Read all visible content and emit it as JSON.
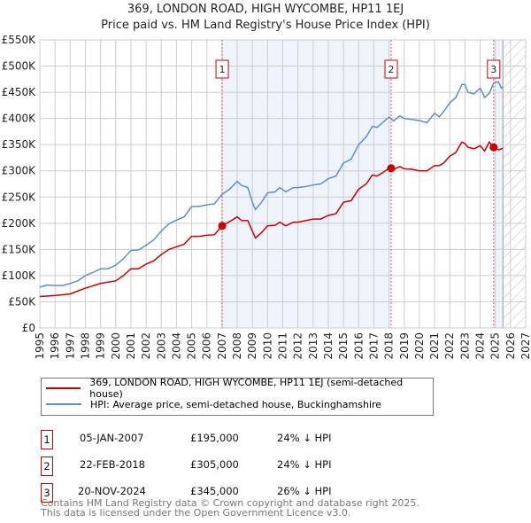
{
  "chart_data": {
    "type": "line",
    "title": "369, LONDON ROAD, HIGH WYCOMBE, HP11 1EJ",
    "subtitle": "Price paid vs. HM Land Registry's House Price Index (HPI)",
    "xlim": [
      1995,
      2027
    ],
    "ylim": [
      0,
      550000
    ],
    "x_ticks": [
      "1995",
      "1996",
      "1997",
      "1998",
      "1999",
      "2000",
      "2001",
      "2002",
      "2003",
      "2004",
      "2005",
      "2006",
      "2007",
      "2008",
      "2009",
      "2010",
      "2011",
      "2012",
      "2013",
      "2014",
      "2015",
      "2016",
      "2017",
      "2018",
      "2019",
      "2020",
      "2021",
      "2022",
      "2023",
      "2024",
      "2025",
      "2026",
      "2027"
    ],
    "y_ticks": [
      "£0",
      "£50K",
      "£100K",
      "£150K",
      "£200K",
      "£250K",
      "£300K",
      "£350K",
      "£400K",
      "£450K",
      "£500K",
      "£550K"
    ],
    "grid": true,
    "series": [
      {
        "name": "369, LONDON ROAD, HIGH WYCOMBE, HP11 1EJ (semi-detached house)",
        "color": "#cc0000",
        "points": [
          [
            1995,
            60
          ],
          [
            1996,
            62
          ],
          [
            1997,
            65
          ],
          [
            1998,
            76
          ],
          [
            1999,
            85
          ],
          [
            2000,
            90
          ],
          [
            2000.5,
            100
          ],
          [
            2001,
            113
          ],
          [
            2001.5,
            113
          ],
          [
            2002,
            122
          ],
          [
            2002.5,
            128
          ],
          [
            2003,
            140
          ],
          [
            2003.5,
            150
          ],
          [
            2004,
            155
          ],
          [
            2004.5,
            160
          ],
          [
            2005,
            175
          ],
          [
            2005.5,
            175
          ],
          [
            2006,
            177
          ],
          [
            2006.5,
            178
          ],
          [
            2007,
            195
          ],
          [
            2007.5,
            203
          ],
          [
            2008,
            212
          ],
          [
            2008.3,
            205
          ],
          [
            2008.7,
            205
          ],
          [
            2009,
            185
          ],
          [
            2009.2,
            172
          ],
          [
            2009.6,
            182
          ],
          [
            2010,
            195
          ],
          [
            2010.5,
            196
          ],
          [
            2010.8,
            202
          ],
          [
            2011.2,
            195
          ],
          [
            2011.7,
            202
          ],
          [
            2012,
            202
          ],
          [
            2012.5,
            205
          ],
          [
            2013,
            208
          ],
          [
            2013.5,
            208
          ],
          [
            2014,
            215
          ],
          [
            2014.5,
            218
          ],
          [
            2015,
            240
          ],
          [
            2015.5,
            243
          ],
          [
            2016,
            265
          ],
          [
            2016.5,
            275
          ],
          [
            2016.9,
            292
          ],
          [
            2017.2,
            290
          ],
          [
            2017.5,
            295
          ],
          [
            2018,
            305
          ],
          [
            2018.3,
            303
          ],
          [
            2018.7,
            308
          ],
          [
            2019,
            304
          ],
          [
            2019.5,
            303
          ],
          [
            2020,
            300
          ],
          [
            2020.5,
            300
          ],
          [
            2021,
            310
          ],
          [
            2021.3,
            310
          ],
          [
            2021.6,
            315
          ],
          [
            2022,
            328
          ],
          [
            2022.4,
            335
          ],
          [
            2022.8,
            355
          ],
          [
            2023,
            352
          ],
          [
            2023.2,
            345
          ],
          [
            2023.6,
            342
          ],
          [
            2024,
            348
          ],
          [
            2024.3,
            338
          ],
          [
            2024.6,
            355
          ],
          [
            2024.9,
            345
          ],
          [
            2025.2,
            340
          ],
          [
            2025.5,
            343
          ]
        ]
      },
      {
        "name": "HPI: Average price, semi-detached house, Buckinghamshire",
        "color": "#5b8fd0",
        "points": [
          [
            1995,
            78
          ],
          [
            1995.5,
            82
          ],
          [
            1996,
            81
          ],
          [
            1996.5,
            81
          ],
          [
            1997,
            85
          ],
          [
            1997.5,
            90
          ],
          [
            1998,
            100
          ],
          [
            1998.5,
            106
          ],
          [
            1999,
            113
          ],
          [
            1999.5,
            113
          ],
          [
            2000,
            120
          ],
          [
            2000.5,
            132
          ],
          [
            2001,
            148
          ],
          [
            2001.5,
            149
          ],
          [
            2002,
            158
          ],
          [
            2002.5,
            168
          ],
          [
            2003,
            185
          ],
          [
            2003.5,
            199
          ],
          [
            2004,
            206
          ],
          [
            2004.5,
            212
          ],
          [
            2005,
            232
          ],
          [
            2005.5,
            232
          ],
          [
            2006,
            235
          ],
          [
            2006.5,
            237
          ],
          [
            2007,
            255
          ],
          [
            2007.5,
            265
          ],
          [
            2008,
            280
          ],
          [
            2008.3,
            272
          ],
          [
            2008.7,
            268
          ],
          [
            2009,
            240
          ],
          [
            2009.2,
            226
          ],
          [
            2009.6,
            240
          ],
          [
            2010,
            258
          ],
          [
            2010.5,
            260
          ],
          [
            2010.8,
            268
          ],
          [
            2011.2,
            260
          ],
          [
            2011.7,
            268
          ],
          [
            2012,
            268
          ],
          [
            2012.5,
            270
          ],
          [
            2013,
            273
          ],
          [
            2013.5,
            275
          ],
          [
            2014,
            285
          ],
          [
            2014.5,
            290
          ],
          [
            2015,
            315
          ],
          [
            2015.5,
            322
          ],
          [
            2016,
            350
          ],
          [
            2016.5,
            365
          ],
          [
            2016.9,
            385
          ],
          [
            2017.2,
            383
          ],
          [
            2017.5,
            390
          ],
          [
            2018,
            403
          ],
          [
            2018.3,
            395
          ],
          [
            2018.7,
            405
          ],
          [
            2019,
            400
          ],
          [
            2019.5,
            398
          ],
          [
            2020,
            396
          ],
          [
            2020.5,
            392
          ],
          [
            2021,
            410
          ],
          [
            2021.3,
            403
          ],
          [
            2021.6,
            413
          ],
          [
            2022,
            430
          ],
          [
            2022.4,
            440
          ],
          [
            2022.8,
            465
          ],
          [
            2023,
            465
          ],
          [
            2023.2,
            450
          ],
          [
            2023.6,
            447
          ],
          [
            2024,
            458
          ],
          [
            2024.3,
            440
          ],
          [
            2024.6,
            448
          ],
          [
            2024.9,
            468
          ],
          [
            2025.2,
            470
          ],
          [
            2025.4,
            458
          ],
          [
            2025.5,
            460
          ]
        ]
      }
    ],
    "sales": [
      {
        "label": "1",
        "x": 2007.01,
        "y": 195
      },
      {
        "label": "2",
        "x": 2018.14,
        "y": 305
      },
      {
        "label": "3",
        "x": 2024.89,
        "y": 345
      }
    ],
    "shaded_ranges": [
      [
        2007.01,
        2018.14
      ],
      [
        2024.89,
        2025.5
      ]
    ],
    "forecast_hatch_from": 2025.5,
    "legend_placement": "below"
  },
  "table": [
    {
      "num": "1",
      "date": "05-JAN-2007",
      "price": "£195,000",
      "hpi": "24% ↓ HPI"
    },
    {
      "num": "2",
      "date": "22-FEB-2018",
      "price": "£305,000",
      "hpi": "24% ↓ HPI"
    },
    {
      "num": "3",
      "date": "20-NOV-2024",
      "price": "£345,000",
      "hpi": "26% ↓ HPI"
    }
  ],
  "footer": {
    "line1": "Contains HM Land Registry data © Crown copyright and database right 2025.",
    "line2": "This data is licensed under the Open Government Licence v3.0."
  }
}
